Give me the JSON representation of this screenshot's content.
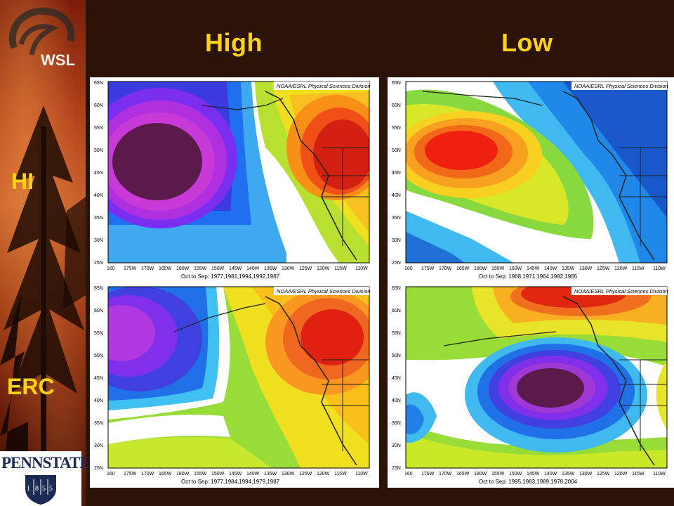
{
  "brand": {
    "logo_text": "WSL",
    "university": "PENNSTATE",
    "year_digits": [
      "1",
      "8",
      "5",
      "5"
    ]
  },
  "columns": {
    "high": "High",
    "low": "Low"
  },
  "rows": {
    "hi": "HI",
    "erc": "ERC"
  },
  "panels": [
    {
      "id": "hi-high",
      "credit": "NOAA/ESRL Physical Sciences Division",
      "caption": "Oct to Sep: 1977,1981,1994,1992,1987"
    },
    {
      "id": "hi-low",
      "credit": "NOAA/ESRL Physical Sciences Division",
      "caption": "Oct to Sep: 1968,1971,1964,1982,1965"
    },
    {
      "id": "erc-high",
      "credit": "NOAA/ESRL Physical Sciences Division",
      "caption": "Oct to Sep: 1977,1984,1994,1979,1987"
    },
    {
      "id": "erc-low",
      "credit": "NOAA/ESRL Physical Sciences Division",
      "caption": "Oct to Sep: 1995,1983,1989,1978,2004"
    }
  ],
  "axes": {
    "lat_labels": [
      "65N",
      "60N",
      "55N",
      "50N",
      "45N",
      "40N",
      "35N",
      "30N",
      "25N"
    ],
    "lon_labels": [
      "160",
      "175W",
      "170W",
      "165W",
      "180W",
      "155W",
      "150W",
      "145W",
      "140W",
      "135W",
      "130W",
      "125W",
      "120W",
      "115W",
      "110W"
    ]
  },
  "palette": {
    "title_yellow": "#ffd21a",
    "background": "#2b1407"
  }
}
